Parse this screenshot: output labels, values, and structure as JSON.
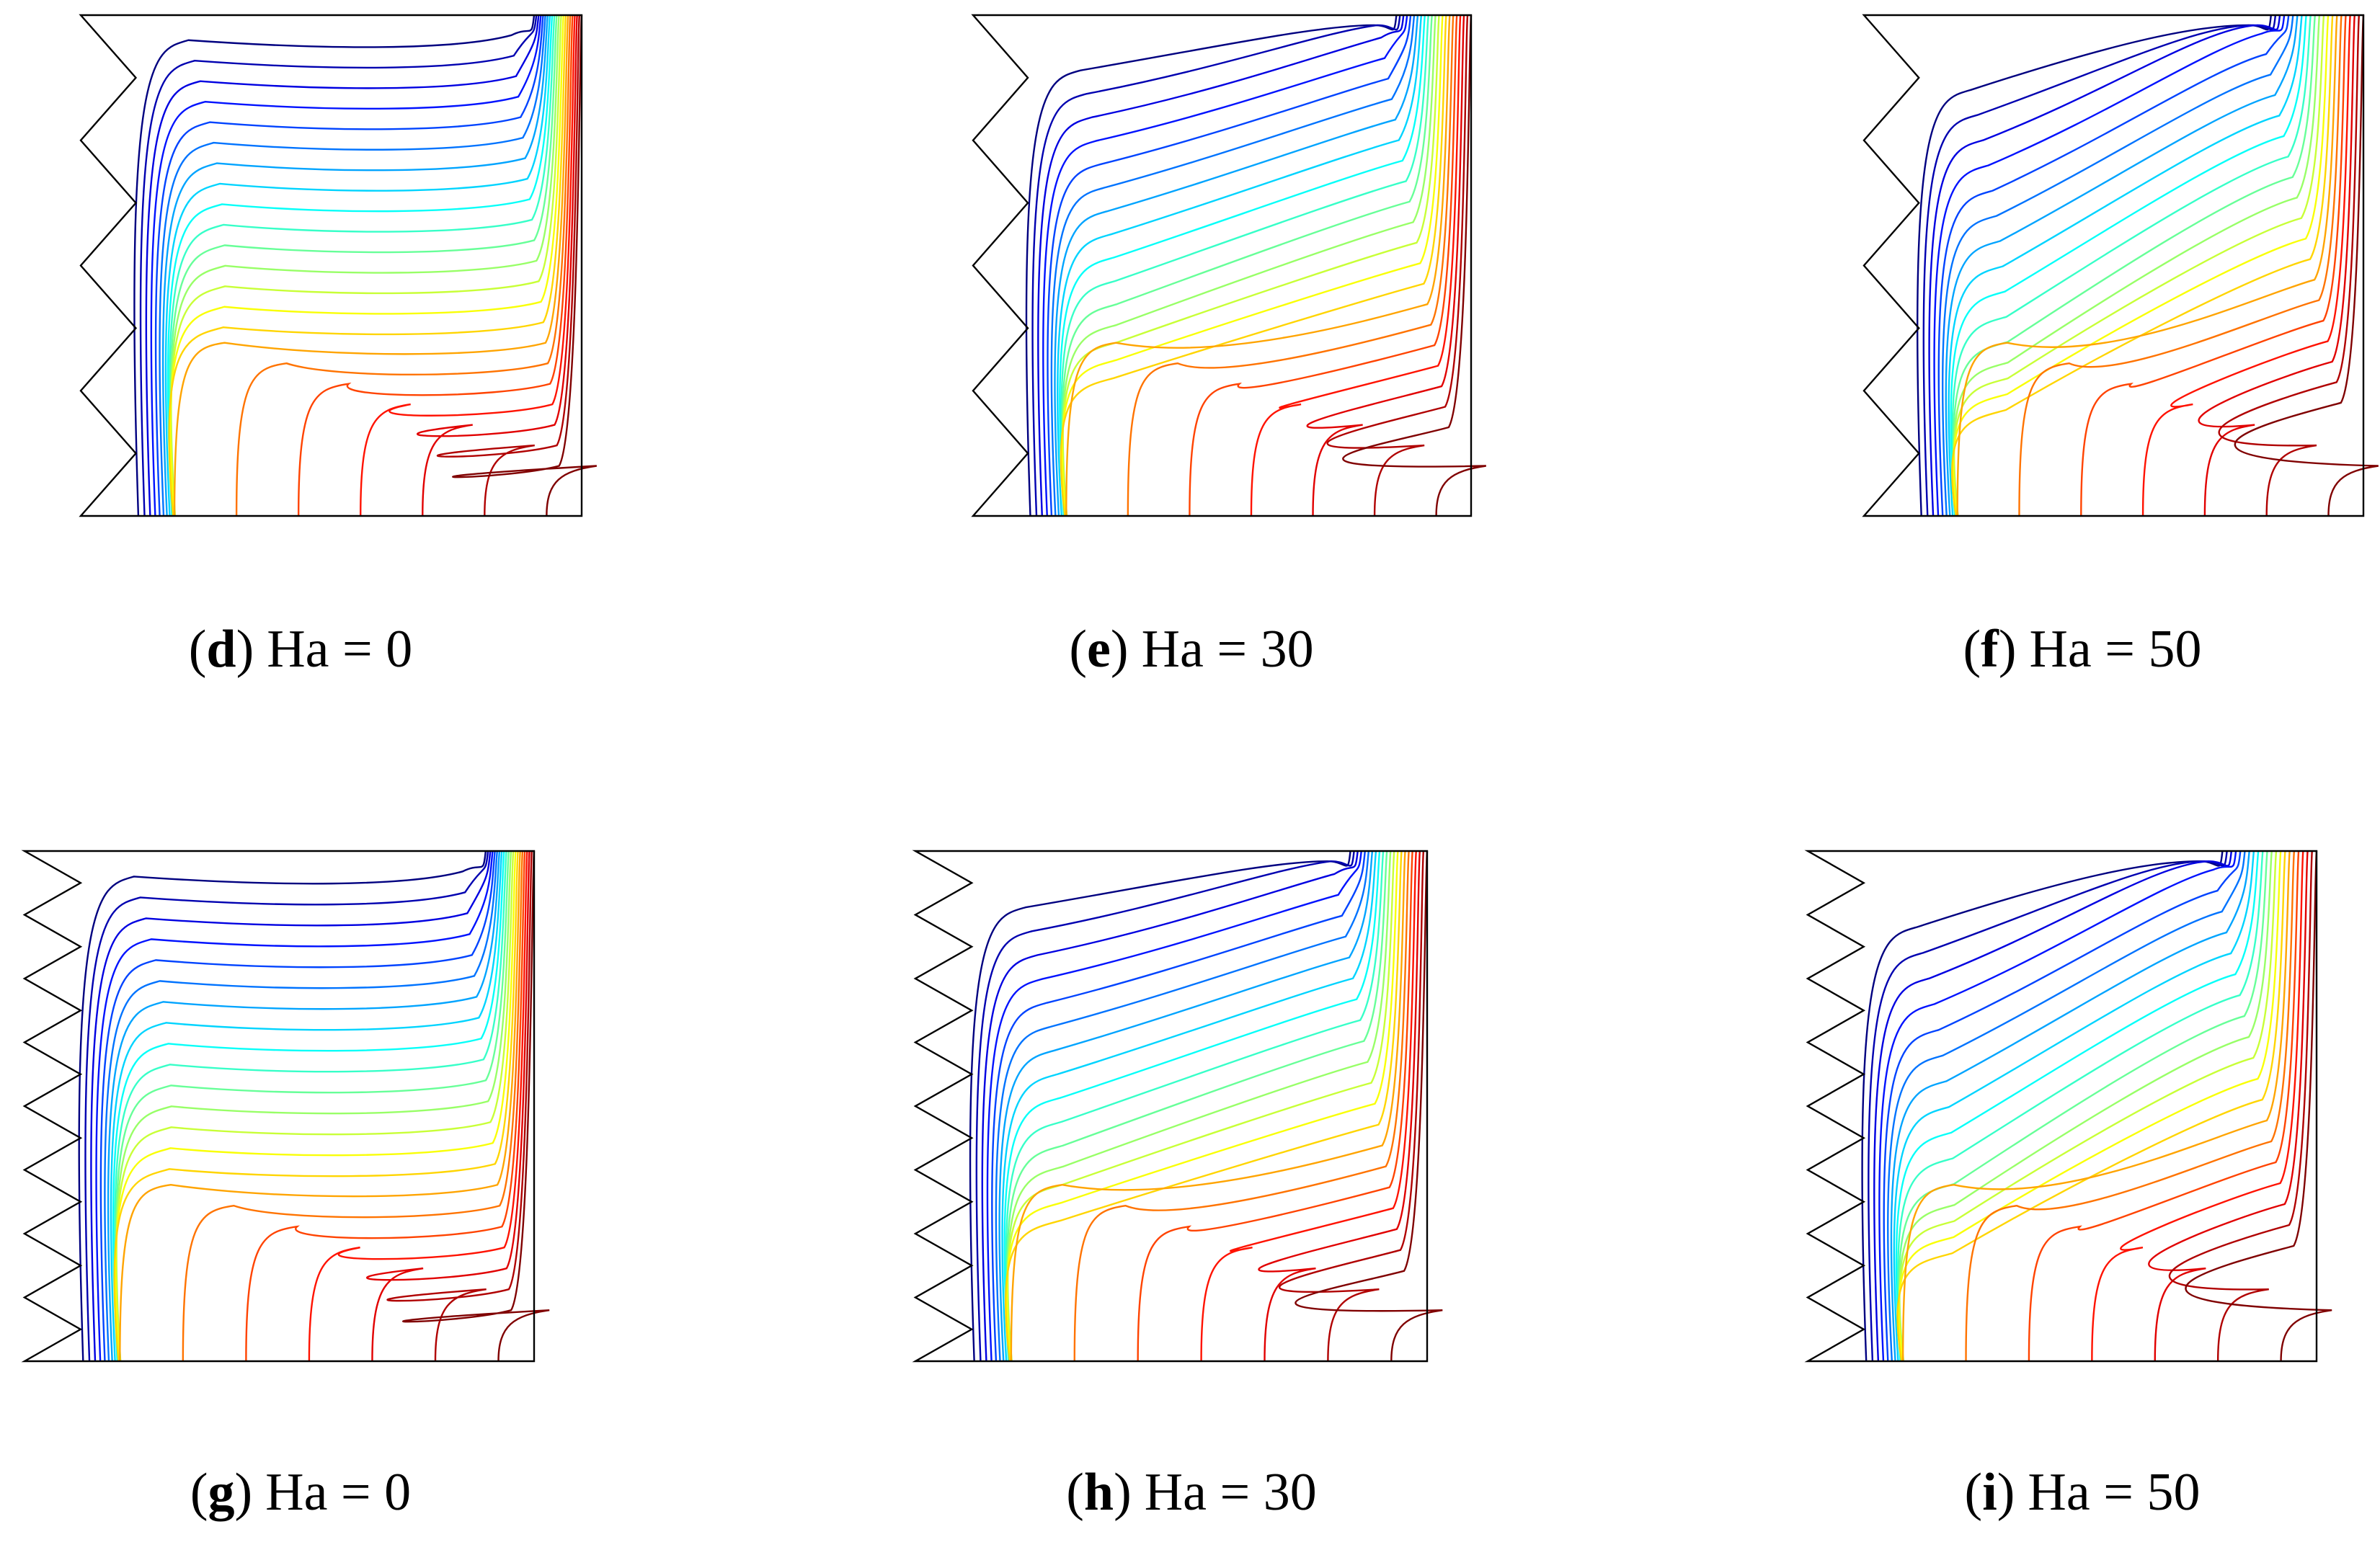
{
  "tag_brackets": [
    "(",
    ")"
  ],
  "panels": [
    {
      "tag": "d",
      "caption": "Ha = 0"
    },
    {
      "tag": "e",
      "caption": "Ha = 30"
    },
    {
      "tag": "f",
      "caption": "Ha = 50"
    },
    {
      "tag": "g",
      "caption": "Ha = 0"
    },
    {
      "tag": "h",
      "caption": "Ha = 30"
    },
    {
      "tag": "i",
      "caption": "Ha = 50"
    }
  ]
}
